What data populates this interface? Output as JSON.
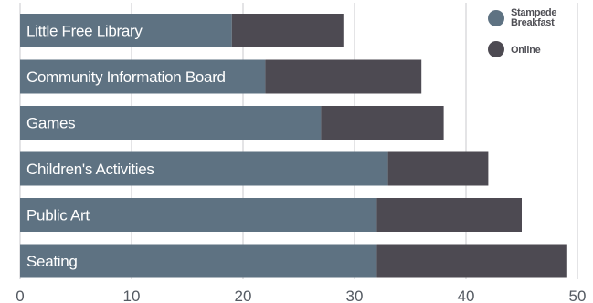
{
  "chart_data": {
    "type": "bar",
    "orientation": "horizontal",
    "stacked": true,
    "categories": [
      "Little Free Library",
      "Community Information Board",
      "Games",
      "Children's Activities",
      "Public Art",
      "Seating"
    ],
    "series": [
      {
        "name": "Stampede Breakfast",
        "values": [
          19,
          22,
          27,
          33,
          32,
          32
        ],
        "color": "#5e7282"
      },
      {
        "name": "Online",
        "values": [
          10,
          14,
          11,
          9,
          13,
          17
        ],
        "color": "#4d4a52"
      }
    ],
    "xlim": [
      0,
      50
    ],
    "xticks": [
      "0",
      "10",
      "20",
      "30",
      "40",
      "50"
    ],
    "grid": true,
    "legend": {
      "placement": "top-right",
      "entries": [
        {
          "lines": [
            "Stampede",
            "Breakfast"
          ],
          "color": "#5e7282"
        },
        {
          "lines": [
            "Online"
          ],
          "color": "#4d4a52"
        }
      ]
    },
    "title": "",
    "xlabel": "",
    "ylabel": ""
  }
}
